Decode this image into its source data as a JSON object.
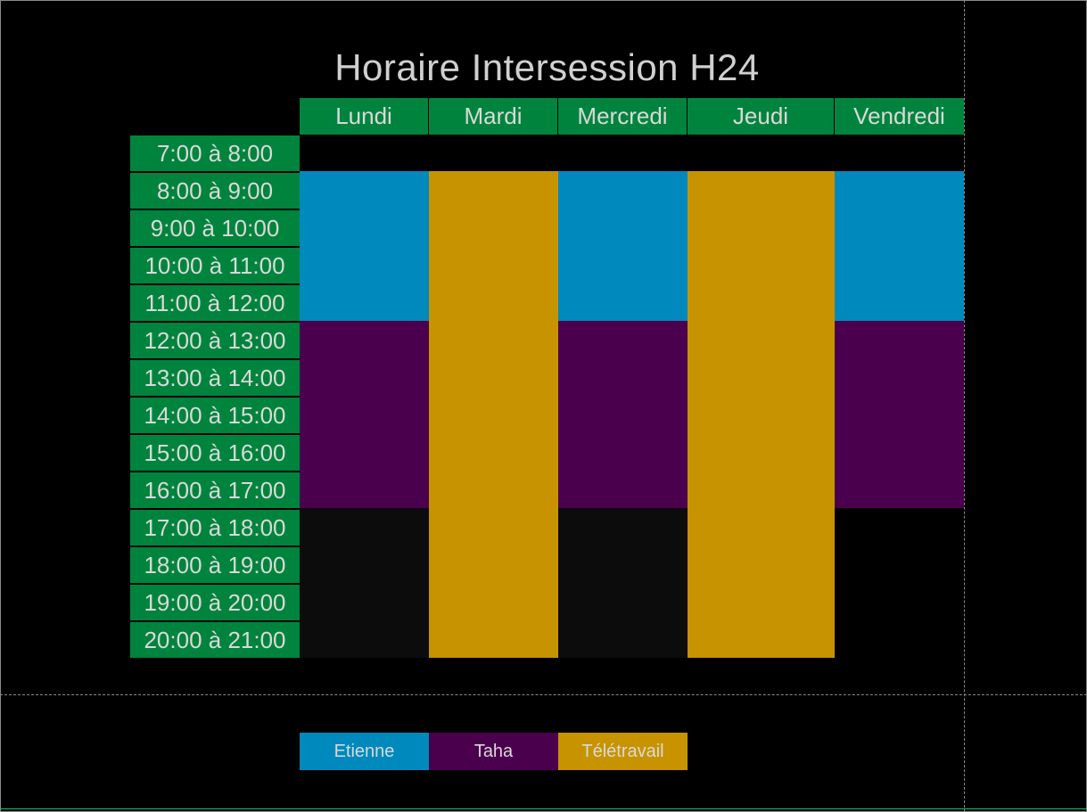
{
  "title": "Horaire Intersession H24",
  "days": [
    "Lundi",
    "Mardi",
    "Mercredi",
    "Jeudi",
    "Vendredi"
  ],
  "time_slots": [
    "7:00 à 8:00",
    "8:00 à 9:00",
    "9:00 à 10:00",
    "10:00 à 11:00",
    "11:00 à 12:00",
    "12:00 à 13:00",
    "13:00 à 14:00",
    "14:00 à 15:00",
    "15:00 à 16:00",
    "16:00 à 17:00",
    "17:00 à 18:00",
    "18:00 à 19:00",
    "19:00 à 20:00",
    "20:00 à 21:00"
  ],
  "legend": {
    "etienne": "Etienne",
    "taha": "Taha",
    "teletravail": "Télétravail"
  },
  "colors": {
    "header_green": "#00843d",
    "etienne": "#0089bd",
    "taha": "#4b004d",
    "teletravail": "#c79400"
  }
}
